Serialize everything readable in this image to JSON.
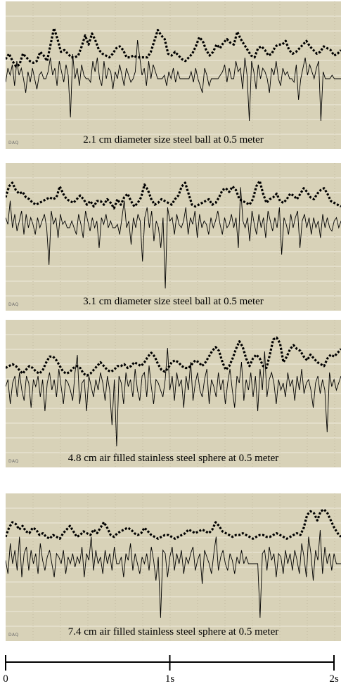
{
  "daq_label": "DAQ",
  "time_axis": {
    "ticks": [
      {
        "value": 0,
        "label": "0"
      },
      {
        "value": 1,
        "label": "1s"
      },
      {
        "value": 2,
        "label": "2s"
      }
    ],
    "range": [
      0,
      2
    ]
  },
  "chart_data": [
    {
      "type": "line",
      "title": "2.1 cm diameter size steel ball at 0.5 meter",
      "background": "#d8d2b8",
      "series": [
        {
          "style": "dotted",
          "color": "#000000",
          "y": [
            0.15,
            0.3,
            0.1,
            -0.05,
            0.0,
            0.3,
            0.2,
            0.1,
            0.05,
            0.1,
            0.35,
            0.25,
            0.1,
            0.55,
            1.0,
            0.7,
            0.35,
            0.4,
            0.3,
            0.2,
            0.2,
            0.25,
            0.5,
            0.8,
            0.55,
            0.85,
            0.65,
            0.4,
            0.3,
            0.25,
            0.2,
            0.3,
            0.45,
            0.5,
            0.4,
            0.2,
            0.2,
            0.25,
            0.2,
            0.2,
            0.2,
            0.2,
            0.35,
            0.65,
            0.95,
            0.8,
            0.7,
            0.3,
            0.25,
            0.35,
            0.25,
            0.15,
            0.1,
            0.2,
            0.3,
            0.5,
            0.75,
            0.65,
            0.4,
            0.25,
            0.35,
            0.55,
            0.45,
            0.6,
            0.7,
            0.6,
            0.55,
            0.9,
            0.7,
            0.55,
            0.4,
            0.25,
            0.2,
            0.45,
            0.5,
            0.4,
            0.25,
            0.3,
            0.5,
            0.55,
            0.55,
            0.65,
            0.4,
            0.3,
            0.35,
            0.45,
            0.55,
            0.65,
            0.5,
            0.4,
            0.3,
            0.35,
            0.5,
            0.45,
            0.4,
            0.25,
            0.3,
            0.4
          ]
        },
        {
          "style": "solid",
          "color": "#000000",
          "y": [
            -0.1,
            0.3,
            0.1,
            0.4,
            -0.2,
            0.5,
            0.1,
            0.3,
            0,
            -0.4,
            0.2,
            -0.1,
            0.3,
            0,
            -0.3,
            0.1,
            0.2,
            0,
            0,
            0.2,
            0.6,
            0.1,
            0.3,
            -0.2,
            0.5,
            0.2,
            -0.1,
            0.4,
            0.1,
            -1.1,
            0.7,
            0,
            0.3,
            -0.2,
            0.4,
            0.1,
            0,
            0,
            -0.1,
            0.5,
            0.2,
            0.6,
            0,
            -0.2,
            0.5,
            0,
            0.3,
            0.2,
            -0.3,
            0.2,
            0,
            0.4,
            0.1,
            -0.2,
            0.3,
            0.1,
            -0.1,
            0,
            0.2,
            1.1,
            0.6,
            0.1,
            0.3,
            -0.2,
            0.5,
            0,
            0.4,
            0.2,
            0,
            0,
            0,
            0.1,
            -0.2,
            0.2,
            0,
            0.3,
            -0.1,
            0.2,
            0,
            0,
            0,
            0,
            0,
            0.2,
            -0.1,
            0.3,
            0,
            -0.2,
            -0.4,
            0.3,
            0.1,
            -0.2,
            0,
            0,
            0,
            0,
            0.1,
            0.2,
            0.4,
            -0.1,
            0.3,
            0,
            0,
            0.5,
            0.2,
            0.3,
            -0.3,
            0.6,
            0.1,
            -1.2,
            0.5,
            0.2,
            -0.3,
            0.4,
            0,
            0.3,
            0.2,
            0,
            -0.4,
            0.3,
            0.1,
            0.5,
            0,
            -0.2,
            0.3,
            0.1,
            0.2,
            0,
            0,
            -0.1,
            0.4,
            -0.6,
            0,
            0.3,
            0.6,
            0.1,
            0.4,
            0.2,
            0,
            0.3,
            0.5,
            -1.2,
            0.2,
            0,
            0,
            0,
            0.1,
            0,
            0,
            0,
            0
          ]
        }
      ]
    },
    {
      "type": "line",
      "title": "3.1 cm diameter size steel ball at 0.5 meter",
      "background": "#d8d2b8",
      "series": [
        {
          "style": "dotted",
          "color": "#000000",
          "y": [
            0.6,
            0.9,
            1.0,
            0.8,
            0.7,
            0.75,
            0.6,
            0.55,
            0.45,
            0.4,
            0.45,
            0.5,
            0.55,
            0.6,
            0.55,
            0.6,
            0.9,
            0.7,
            0.55,
            0.5,
            0.45,
            0.55,
            0.65,
            0.55,
            0.4,
            0.5,
            0.35,
            0.5,
            0.5,
            0.4,
            0.55,
            0.45,
            0.3,
            0.55,
            0.4,
            0.6,
            0.7,
            0.5,
            0.35,
            0.45,
            0.6,
            0.95,
            0.8,
            0.55,
            0.4,
            0.45,
            0.55,
            0.5,
            0.45,
            0.4,
            0.55,
            0.65,
            0.9,
            1.0,
            0.7,
            0.4,
            0.35,
            0.4,
            0.45,
            0.5,
            0.55,
            0.4,
            0.45,
            0.6,
            0.8,
            0.85,
            0.75,
            0.9,
            0.8,
            0.55,
            0.5,
            0.45,
            0.4,
            0.55,
            0.9,
            1.05,
            0.7,
            0.45,
            0.55,
            0.6,
            0.7,
            0.5,
            0.45,
            0.55,
            0.7,
            0.65,
            0.55,
            0.7,
            0.85,
            0.75,
            0.6,
            0.55,
            0.7,
            0.8,
            0.85,
            0.7,
            0.5,
            0.45,
            0.4,
            0.35
          ]
        },
        {
          "style": "solid",
          "color": "#000000",
          "y": [
            0.3,
            0.1,
            0.8,
            0,
            0.4,
            -0.1,
            0.2,
            0.5,
            -0.2,
            0.4,
            0,
            0.3,
            0.1,
            -0.2,
            0.3,
            0,
            0.2,
            0.4,
            0,
            -1.1,
            0.5,
            0.1,
            0.3,
            -0.3,
            0.4,
            0.1,
            0.2,
            0,
            0,
            0.2,
            0,
            -0.2,
            0.4,
            0.1,
            -0.3,
            0.5,
            0.2,
            -0.1,
            0.3,
            0,
            0.2,
            -0.6,
            0.3,
            0.1,
            0.4,
            0,
            0.2,
            0,
            0,
            0.1,
            -0.2,
            0.3,
            0.8,
            0,
            0.2,
            -0.5,
            0.3,
            0,
            0.4,
            0.2,
            -1.0,
            0.3,
            0.6,
            0,
            0.5,
            -0.4,
            0.2,
            0,
            -0.6,
            0.3,
            -1.8,
            0.6,
            0.2,
            0.3,
            -0.2,
            0.4,
            0.1,
            0,
            0.2,
            0.6,
            -0.2,
            0.3,
            0.1,
            0.5,
            -0.3,
            0.4,
            0,
            0.2,
            0.1,
            -0.2,
            0.3,
            0,
            0.2,
            0.5,
            0.1,
            -0.2,
            0.3,
            0,
            0.1,
            0.4,
            0,
            0.3,
            -0.6,
            1.2,
            0.2,
            0,
            0.3,
            -0.4,
            0.5,
            0.1,
            -0.2,
            0.4,
            0,
            0.3,
            -0.3,
            0.5,
            0.2,
            -0.1,
            0.3,
            0,
            0.6,
            -0.8,
            0.3,
            0.1,
            -0.2,
            0.4,
            0,
            0.3,
            0.5,
            -0.6,
            0.2,
            0.4,
            0,
            0.3,
            -0.2,
            0.3,
            0,
            0.2,
            -0.3,
            0.4,
            0,
            0.3,
            0,
            -0.1,
            0.2,
            0.3,
            0,
            0.2
          ]
        }
      ]
    },
    {
      "type": "line",
      "title": "4.8 cm air filled stainless steel sphere at 0.5 meter",
      "background": "#d8d2b8",
      "series": [
        {
          "style": "dotted",
          "color": "#000000",
          "y": [
            0.25,
            0.3,
            0.35,
            0.3,
            0.2,
            0.1,
            0.2,
            0.3,
            0.25,
            0.15,
            0.1,
            0.2,
            0.4,
            0.55,
            0.55,
            0.45,
            0.3,
            0.15,
            0.1,
            0.15,
            0.25,
            0.3,
            0.25,
            0.1,
            0.05,
            0.1,
            0.2,
            0.3,
            0.4,
            0.3,
            0.2,
            0.15,
            0.2,
            0.3,
            0.3,
            0.35,
            0.25,
            0.3,
            0.4,
            0.35,
            0.3,
            0.4,
            0.55,
            0.65,
            0.55,
            0.35,
            0.2,
            0.15,
            0.25,
            0.4,
            0.45,
            0.4,
            0.3,
            0.25,
            0.25,
            0.35,
            0.45,
            0.4,
            0.3,
            0.4,
            0.55,
            0.7,
            0.8,
            0.7,
            0.4,
            0.2,
            0.3,
            0.5,
            0.75,
            0.95,
            0.8,
            0.5,
            0.3,
            0.5,
            0.6,
            0.5,
            0.3,
            0.25,
            0.6,
            1.0,
            1.05,
            0.9,
            0.4,
            0.55,
            0.75,
            0.85,
            0.75,
            0.7,
            0.55,
            0.45,
            0.6,
            0.5,
            0.4,
            0.35,
            0.3,
            0.5,
            0.6,
            0.55,
            0.65,
            0.75
          ]
        },
        {
          "style": "solid",
          "color": "#000000",
          "y": [
            0.1,
            0.3,
            -0.4,
            0.2,
            0.4,
            -0.2,
            0.5,
            0,
            -0.3,
            0.4,
            0.2,
            -0.5,
            0.3,
            0.1,
            0.4,
            -0.2,
            0.3,
            -0.6,
            0.2,
            0.5,
            0,
            0.3,
            -0.2,
            0.6,
            0.1,
            -0.4,
            0.3,
            0.2,
            0,
            -0.3,
            0.5,
            1.0,
            -0.4,
            0.2,
            0.3,
            -0.6,
            0.4,
            0.1,
            -0.2,
            0.3,
            0,
            0.5,
            0.2,
            -0.3,
            0.4,
            0,
            -1.0,
            0.3,
            -1.6,
            0.4,
            0.2,
            -0.4,
            0.5,
            0.1,
            0.3,
            -0.2,
            0.6,
            0,
            -0.3,
            0.4,
            0.5,
            -0.2,
            0.7,
            0.1,
            -0.4,
            0.3,
            0.2,
            0,
            -0.2,
            0.3,
            1.2,
            0,
            0.4,
            -0.3,
            0.5,
            0.1,
            0.3,
            -0.5,
            0.4,
            0,
            0.8,
            -0.3,
            0.2,
            0.5,
            0,
            -0.2,
            0.3,
            0.6,
            -0.4,
            0.3,
            0.1,
            -0.2,
            0.5,
            0,
            0.3,
            -0.4,
            0.2,
            0.6,
            0,
            -0.5,
            0.4,
            0.2,
            0.8,
            -0.3,
            0.3,
            0,
            0.5,
            -0.2,
            0.4,
            -0.6,
            0.6,
            0,
            1.1,
            -0.2,
            0.3,
            0.5,
            0.2,
            -0.4,
            0.3,
            0,
            0.2,
            -0.2,
            0.5,
            0.1,
            0.3,
            -0.3,
            0.4,
            0,
            0.6,
            -0.1,
            0.2,
            0.3,
            0,
            -0.5,
            0.2,
            0.4,
            -0.1,
            0.3,
            0,
            -1.2,
            0.5,
            0.1,
            0.3,
            0,
            0.2,
            0.4
          ]
        }
      ]
    },
    {
      "type": "line",
      "title": "7.4 cm air filled stainless steel sphere at 0.5 meter",
      "background": "#d8d2b8",
      "series": [
        {
          "style": "dotted",
          "color": "#000000",
          "y": [
            0.35,
            0.6,
            0.75,
            0.7,
            0.55,
            0.65,
            0.5,
            0.45,
            0.6,
            0.55,
            0.4,
            0.45,
            0.35,
            0.3,
            0.4,
            0.35,
            0.3,
            0.45,
            0.55,
            0.65,
            0.5,
            0.35,
            0.4,
            0.5,
            0.45,
            0.4,
            0.55,
            0.45,
            0.6,
            0.75,
            0.6,
            0.4,
            0.35,
            0.45,
            0.5,
            0.55,
            0.6,
            0.55,
            0.45,
            0.4,
            0.45,
            0.6,
            0.5,
            0.4,
            0.35,
            0.3,
            0.35,
            0.4,
            0.4,
            0.35,
            0.3,
            0.35,
            0.4,
            0.45,
            0.55,
            0.5,
            0.45,
            0.5,
            0.55,
            0.5,
            0.45,
            0.55,
            0.75,
            0.65,
            0.5,
            0.45,
            0.4,
            0.35,
            0.4,
            0.4,
            0.45,
            0.4,
            0.35,
            0.3,
            0.35,
            0.4,
            0.4,
            0.35,
            0.35,
            0.4,
            0.45,
            0.4,
            0.35,
            0.3,
            0.35,
            0.4,
            0.45,
            0.4,
            0.6,
            0.95,
            1.05,
            1.0,
            0.8,
            1.05,
            1.1,
            1.0,
            0.8,
            0.6,
            0.45,
            0.35
          ]
        },
        {
          "style": "solid",
          "color": "#000000",
          "y": [
            0.1,
            -0.3,
            0.6,
            0,
            0.4,
            -0.2,
            0.8,
            -0.4,
            0.3,
            0.5,
            -0.2,
            0.4,
            0,
            0.3,
            -0.3,
            0.6,
            0.1,
            -0.2,
            0.2,
            0.4,
            0,
            -0.4,
            0.3,
            0.2,
            0,
            0.4,
            -0.3,
            0.2,
            0,
            0.3,
            -0.1,
            0.2,
            0,
            0.5,
            -0.4,
            0.3,
            0.1,
            0.8,
            -0.2,
            0.4,
            0,
            0.2,
            -0.3,
            0.4,
            0,
            0.3,
            -0.2,
            0.5,
            0,
            0,
            0.2,
            -0.4,
            0.3,
            0.1,
            0.6,
            -0.2,
            0.3,
            0,
            -0.3,
            0.2,
            0,
            0.3,
            -0.2,
            0.5,
            0.1,
            -0.5,
            0.2,
            -1.6,
            0.4,
            0.3,
            -0.4,
            0.2,
            0.5,
            -0.2,
            0.3,
            0,
            0.4,
            -0.3,
            0.2,
            0,
            0.3,
            0.5,
            -0.2,
            0.1,
            0.3,
            -0.6,
            0.4,
            0.2,
            0,
            -0.3,
            0.3,
            0.8,
            -0.2,
            0.2,
            0.4,
            0,
            -0.2,
            0.3,
            0.1,
            -0.3,
            0.2,
            0,
            0.4,
            0,
            0.2,
            0,
            0,
            0,
            0,
            0,
            -1.6,
            0.3,
            0.4,
            -0.2,
            0.5,
            0.1,
            0.3,
            -0.4,
            0.3,
            0.2,
            -0.3,
            0.4,
            0,
            0.3,
            -0.2,
            0.4,
            0.1,
            -0.3,
            0.6,
            0.2,
            -0.4,
            0.8,
            0.3,
            -0.5,
            0.4,
            0.1,
            1.0,
            -0.3,
            0.5,
            0,
            0.3,
            -0.2,
            0.3,
            0,
            0,
            0
          ]
        }
      ]
    }
  ]
}
